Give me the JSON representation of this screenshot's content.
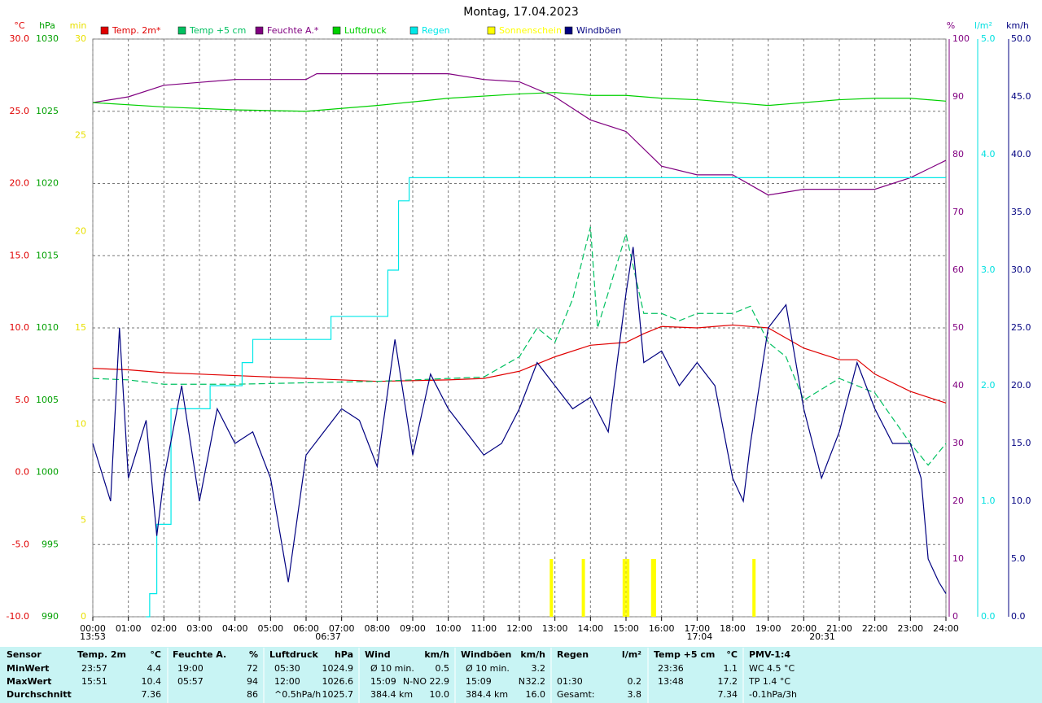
{
  "chart_data": {
    "type": "line",
    "title": "Montag, 17.04.2023",
    "xlim": [
      0,
      24
    ],
    "xticks": [
      {
        "value": 0,
        "label": "00:00"
      },
      {
        "value": 1,
        "label": "01:00"
      },
      {
        "value": 2,
        "label": "02:00"
      },
      {
        "value": 3,
        "label": "03:00"
      },
      {
        "value": 4,
        "label": "04:00"
      },
      {
        "value": 5,
        "label": "05:00"
      },
      {
        "value": 6,
        "label": "06:00"
      },
      {
        "value": 7,
        "label": "07:00"
      },
      {
        "value": 8,
        "label": "08:00"
      },
      {
        "value": 9,
        "label": "09:00"
      },
      {
        "value": 10,
        "label": "10:00"
      },
      {
        "value": 11,
        "label": "11:00"
      },
      {
        "value": 12,
        "label": "12:00"
      },
      {
        "value": 13,
        "label": "13:00"
      },
      {
        "value": 14,
        "label": "14:00"
      },
      {
        "value": 15,
        "label": "15:00"
      },
      {
        "value": 16,
        "label": "16:00"
      },
      {
        "value": 17,
        "label": "17:00"
      },
      {
        "value": 18,
        "label": "18:00"
      },
      {
        "value": 19,
        "label": "19:00"
      },
      {
        "value": 20,
        "label": "20:00"
      },
      {
        "value": 21,
        "label": "21:00"
      },
      {
        "value": 22,
        "label": "22:00"
      },
      {
        "value": 23,
        "label": "23:00"
      },
      {
        "value": 24,
        "label": "24:00"
      }
    ],
    "grid": true,
    "axes": [
      {
        "label": "°C",
        "color": "#e00000",
        "lim": [
          -10,
          30
        ],
        "ticks": [
          {
            "value": -10,
            "label": "-10.0"
          },
          {
            "value": -5,
            "label": "-5.0"
          },
          {
            "value": 0,
            "label": "0.0"
          },
          {
            "value": 5,
            "label": "5.0"
          },
          {
            "value": 10,
            "label": "10.0"
          },
          {
            "value": 15,
            "label": "15.0"
          },
          {
            "value": 20,
            "label": "20.0"
          },
          {
            "value": 25,
            "label": "25.0"
          },
          {
            "value": 30,
            "label": "30.0"
          }
        ]
      },
      {
        "label": "hPa",
        "color": "#00a000",
        "lim": [
          990,
          1030
        ],
        "ticks": [
          990,
          995,
          1000,
          1005,
          1010,
          1015,
          1020,
          1025,
          1030
        ]
      },
      {
        "label": "min",
        "color": "#e8e000",
        "lim": [
          0,
          30
        ],
        "ticks": [
          0,
          5,
          10,
          15,
          20,
          25,
          30
        ]
      },
      {
        "label": "%",
        "color": "#800080",
        "lim": [
          0,
          100
        ],
        "ticks": [
          0,
          10,
          20,
          30,
          40,
          50,
          60,
          70,
          80,
          90,
          100
        ]
      },
      {
        "label": "l/m²",
        "color": "#00e0e0",
        "lim": [
          0,
          5
        ],
        "ticks": [
          {
            "value": 0,
            "label": "0.0"
          },
          {
            "value": 1,
            "label": "1.0"
          },
          {
            "value": 2,
            "label": "2.0"
          },
          {
            "value": 3,
            "label": "3.0"
          },
          {
            "value": 4,
            "label": "4.0"
          },
          {
            "value": 5,
            "label": "5.0"
          }
        ]
      },
      {
        "label": "km/h",
        "color": "#000080",
        "lim": [
          0,
          50
        ],
        "ticks": [
          {
            "value": 0,
            "label": "0.0"
          },
          {
            "value": 5,
            "label": "5.0"
          },
          {
            "value": 10,
            "label": "10.0"
          },
          {
            "value": 15,
            "label": "15.0"
          },
          {
            "value": 20,
            "label": "20.0"
          },
          {
            "value": 25,
            "label": "25.0"
          },
          {
            "value": 30,
            "label": "30.0"
          },
          {
            "value": 35,
            "label": "35.0"
          },
          {
            "value": 40,
            "label": "40.0"
          },
          {
            "value": 45,
            "label": "45.0"
          },
          {
            "value": 50,
            "label": "50.0"
          }
        ]
      }
    ],
    "series": [
      {
        "name": "Temp. 2m*",
        "color": "#e00000",
        "axis": 0,
        "x": [
          0,
          1,
          2,
          4,
          6,
          8,
          10,
          11,
          12,
          13,
          14,
          15,
          15.5,
          16,
          17,
          18,
          19,
          20,
          21,
          21.5,
          22,
          23,
          24
        ],
        "values": [
          7.2,
          7.1,
          6.9,
          6.7,
          6.5,
          6.3,
          6.4,
          6.5,
          7,
          8,
          8.8,
          9,
          9.6,
          10.1,
          10,
          10.2,
          10,
          8.6,
          7.8,
          7.8,
          6.8,
          5.6,
          4.8
        ]
      },
      {
        "name": "Temp +5 cm",
        "color": "#00c060",
        "axis": 0,
        "dash": true,
        "x": [
          0,
          1,
          2,
          4,
          6,
          8,
          10,
          11,
          12,
          12.5,
          13,
          13.5,
          14,
          14.2,
          15,
          15.5,
          16,
          16.5,
          17,
          18,
          18.5,
          19,
          19.5,
          20,
          21,
          22,
          23,
          23.5,
          24
        ],
        "values": [
          6.5,
          6.4,
          6.1,
          6.1,
          6.2,
          6.3,
          6.5,
          6.6,
          8,
          10,
          9,
          12,
          17,
          10,
          16.5,
          11,
          11,
          10.5,
          11,
          11,
          11.5,
          9,
          8,
          5,
          6.5,
          5.5,
          2,
          0.5,
          2
        ]
      },
      {
        "name": "Feuchte A.*",
        "color": "#800080",
        "axis": 3,
        "x": [
          0,
          1,
          2,
          4,
          6,
          6.3,
          10,
          11,
          12,
          13,
          14,
          15,
          16,
          17,
          18,
          19,
          20,
          21,
          22,
          23,
          24
        ],
        "values": [
          89,
          90,
          92,
          93,
          93,
          94,
          94,
          93,
          92.6,
          90,
          86,
          84,
          78,
          76.5,
          76.5,
          73,
          74,
          74,
          74,
          76,
          79
        ]
      },
      {
        "name": "Luftdruck",
        "color": "#00d000",
        "axis": 1,
        "x": [
          0,
          2,
          4,
          6,
          8,
          10,
          12,
          13,
          14,
          15,
          16,
          17,
          18,
          19,
          20,
          21,
          22,
          23,
          24
        ],
        "values": [
          1025.6,
          1025.3,
          1025.1,
          1025,
          1025.4,
          1025.9,
          1026.2,
          1026.3,
          1026.1,
          1026.1,
          1025.9,
          1025.8,
          1025.6,
          1025.4,
          1025.6,
          1025.8,
          1025.9,
          1025.9,
          1025.7
        ]
      },
      {
        "name": "Regen",
        "color": "#00e8e8",
        "axis": 4,
        "step": true,
        "x": [
          1.5,
          1.6,
          1.8,
          2.2,
          3.3,
          4.2,
          4.5,
          6.7,
          8.3,
          8.6,
          8.9,
          24
        ],
        "values": [
          0,
          0.2,
          0.8,
          1.8,
          2,
          2.2,
          2.4,
          2.6,
          3,
          3.6,
          3.8,
          3.8
        ]
      },
      {
        "name": "Sonnenschein",
        "color": "#ffff00",
        "axis": 2,
        "bars": true,
        "x": [
          12.9,
          13.8,
          14.95,
          15.05,
          15.75,
          15.8,
          18.6
        ],
        "values": [
          3,
          3,
          3,
          3,
          3,
          3,
          3
        ]
      },
      {
        "name": "Windböen",
        "color": "#000080",
        "axis": 5,
        "x": [
          0,
          0.5,
          0.75,
          1,
          1.5,
          1.8,
          2,
          2.5,
          3,
          3.5,
          4,
          4.5,
          5,
          5.5,
          6,
          6.5,
          7,
          7.5,
          8,
          8.5,
          9,
          9.5,
          10,
          10.5,
          11,
          11.5,
          12,
          12.5,
          13,
          13.5,
          14,
          14.5,
          15,
          15.2,
          15.5,
          16,
          16.5,
          17,
          17.5,
          18,
          18.3,
          18.5,
          19,
          19.5,
          20,
          20.5,
          21,
          21.5,
          22,
          22.5,
          23,
          23.3,
          23.5,
          23.8,
          24
        ],
        "values": [
          15,
          10,
          25,
          12,
          17,
          7,
          12,
          20,
          10,
          18,
          15,
          16,
          12,
          3,
          14,
          16,
          18,
          17,
          13,
          24,
          14,
          21,
          18,
          16,
          14,
          15,
          18,
          22,
          20,
          18,
          19,
          16,
          28,
          32,
          22,
          23,
          20,
          22,
          20,
          12,
          10,
          15,
          25,
          27,
          18,
          12,
          16,
          22,
          18,
          15,
          15,
          12,
          5,
          3,
          2
        ]
      }
    ],
    "annotations": [
      {
        "x": 0,
        "label": "13:53"
      },
      {
        "x": 6.62,
        "label": "06:37"
      },
      {
        "x": 17.07,
        "label": "17:04"
      },
      {
        "x": 20.52,
        "label": "20:31"
      }
    ]
  },
  "table": {
    "header": [
      "Sensor",
      "Temp. 2m",
      "°C",
      "Feuchte A.",
      "%",
      "Luftdruck",
      "hPa",
      "Wind",
      "km/h",
      "Windböen",
      "km/h",
      "Regen",
      "l/m²",
      "Temp +5 cm",
      "°C",
      "PMV-1:4"
    ],
    "rows": [
      [
        "MinWert",
        "23:57",
        "4.4",
        "19:00",
        "72",
        "05:30",
        "1024.9",
        "Ø 10 min.",
        null,
        "0.5",
        "Ø 10 min.",
        null,
        "3.2",
        null,
        null,
        "23:36",
        "1.1",
        "WC 4.5 °C"
      ],
      [
        "MaxWert",
        "15:51",
        "10.4",
        "05:57",
        "94",
        "12:00",
        "1026.6",
        "15:09",
        "N-NO",
        "22.9",
        "15:09",
        "N",
        "32.2",
        "01:30",
        "0.2",
        "13:48",
        "17.2",
        "TP 1.4 °C"
      ],
      [
        "Durchschnitt",
        null,
        "7.36",
        null,
        "86",
        "^0.5hPa/h",
        "1025.7",
        "384.4 km",
        null,
        "10.0",
        "384.4 km",
        null,
        "16.0",
        "Gesamt:",
        "3.8",
        null,
        "7.34",
        "-0.1hPa/3h"
      ]
    ]
  }
}
